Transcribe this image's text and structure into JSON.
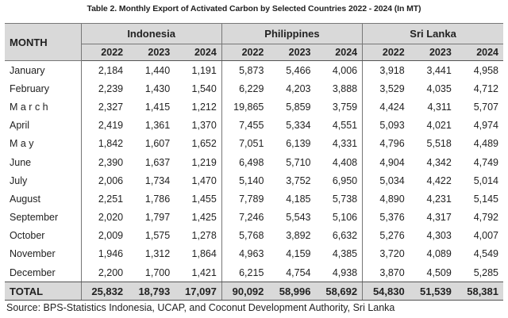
{
  "title": "Table 2. Monthly Export of Activated Carbon by Selected Countries 2022 - 2024 (In MT)",
  "header": {
    "month_label": "MONTH",
    "countries": [
      "Indonesia",
      "Philippines",
      "Sri Lanka"
    ],
    "years": [
      "2022",
      "2023",
      "2024"
    ]
  },
  "rows": [
    {
      "month": "January",
      "values": [
        "2,184",
        "1,440",
        "1,191",
        "5,873",
        "5,466",
        "4,006",
        "3,918",
        "3,441",
        "4,958"
      ]
    },
    {
      "month": "February",
      "values": [
        "2,239",
        "1,430",
        "1,540",
        "6,229",
        "4,203",
        "3,888",
        "3,529",
        "4,035",
        "4,712"
      ]
    },
    {
      "month": "M a r c h",
      "values": [
        "2,327",
        "1,415",
        "1,212",
        "19,865",
        "5,859",
        "3,759",
        "4,424",
        "4,311",
        "5,707"
      ]
    },
    {
      "month": "April",
      "values": [
        "2,419",
        "1,361",
        "1,370",
        "7,455",
        "5,334",
        "4,551",
        "5,093",
        "4,021",
        "4,974"
      ]
    },
    {
      "month": "M a y",
      "values": [
        "1,842",
        "1,607",
        "1,652",
        "7,051",
        "6,139",
        "4,331",
        "4,796",
        "5,518",
        "4,489"
      ]
    },
    {
      "month": "June",
      "values": [
        "2,390",
        "1,637",
        "1,219",
        "6,498",
        "5,710",
        "4,408",
        "4,904",
        "4,342",
        "4,749"
      ]
    },
    {
      "month": "July",
      "values": [
        "2,006",
        "1,734",
        "1,470",
        "5,140",
        "3,752",
        "6,950",
        "5,034",
        "4,422",
        "5,014"
      ]
    },
    {
      "month": "August",
      "values": [
        "2,251",
        "1,786",
        "1,455",
        "7,789",
        "4,185",
        "5,738",
        "4,890",
        "4,231",
        "5,145"
      ]
    },
    {
      "month": "September",
      "values": [
        "2,020",
        "1,797",
        "1,425",
        "7,246",
        "5,543",
        "5,106",
        "5,376",
        "4,317",
        "4,792"
      ]
    },
    {
      "month": "October",
      "values": [
        "2,009",
        "1,575",
        "1,278",
        "5,768",
        "3,892",
        "6,632",
        "5,276",
        "4,303",
        "4,007"
      ]
    },
    {
      "month": "November",
      "values": [
        "1,946",
        "1,312",
        "1,864",
        "4,963",
        "4,159",
        "4,385",
        "3,720",
        "4,089",
        "4,549"
      ]
    },
    {
      "month": "December",
      "values": [
        "2,200",
        "1,700",
        "1,421",
        "6,215",
        "4,754",
        "4,938",
        "3,870",
        "4,509",
        "5,285"
      ]
    }
  ],
  "total": {
    "label": "TOTAL",
    "values": [
      "25,832",
      "18,793",
      "17,097",
      "90,092",
      "58,996",
      "58,692",
      "54,830",
      "51,539",
      "58,381"
    ]
  },
  "source": "Source: BPS-Statistics Indonesia, UCAP, and Coconut Development Authority, Sri Lanka"
}
